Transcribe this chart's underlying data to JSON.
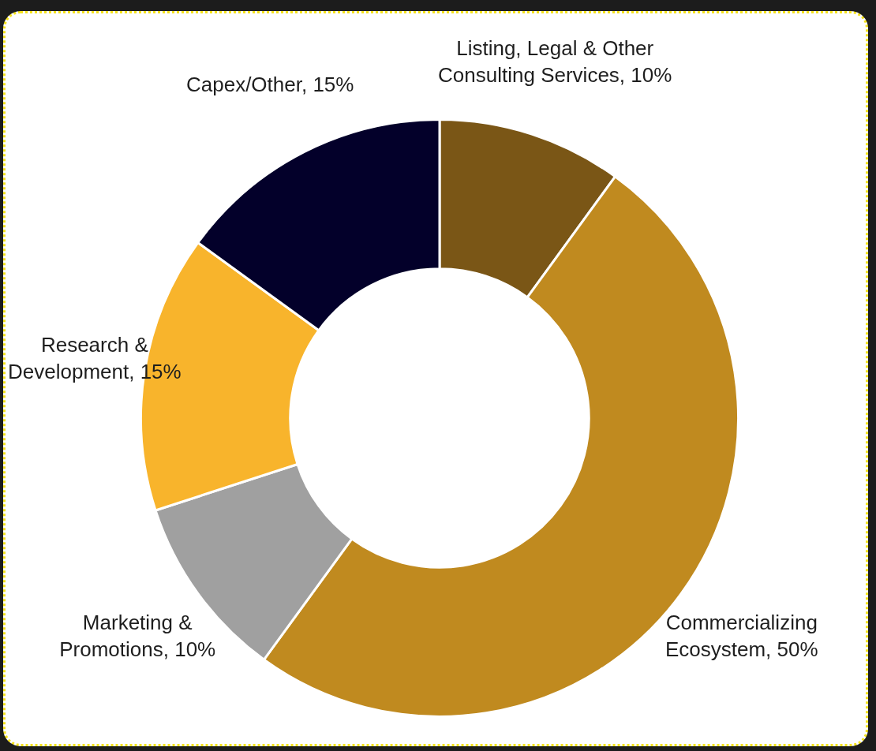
{
  "chart_data": {
    "type": "donut",
    "categories": [
      "Listing, Legal & Other Consulting Services",
      "Commercializing Ecosystem",
      "Marketing & Promotions",
      "Research & Development",
      "Capex/Other"
    ],
    "values": [
      10,
      50,
      10,
      15,
      15
    ],
    "value_labels": [
      "10%",
      "50%",
      "10%",
      "15%",
      "15%"
    ],
    "colors": [
      "#7a5616",
      "#c08a1f",
      "#a0a0a0",
      "#f8b42c",
      "#03002a"
    ],
    "legend": false
  }
}
